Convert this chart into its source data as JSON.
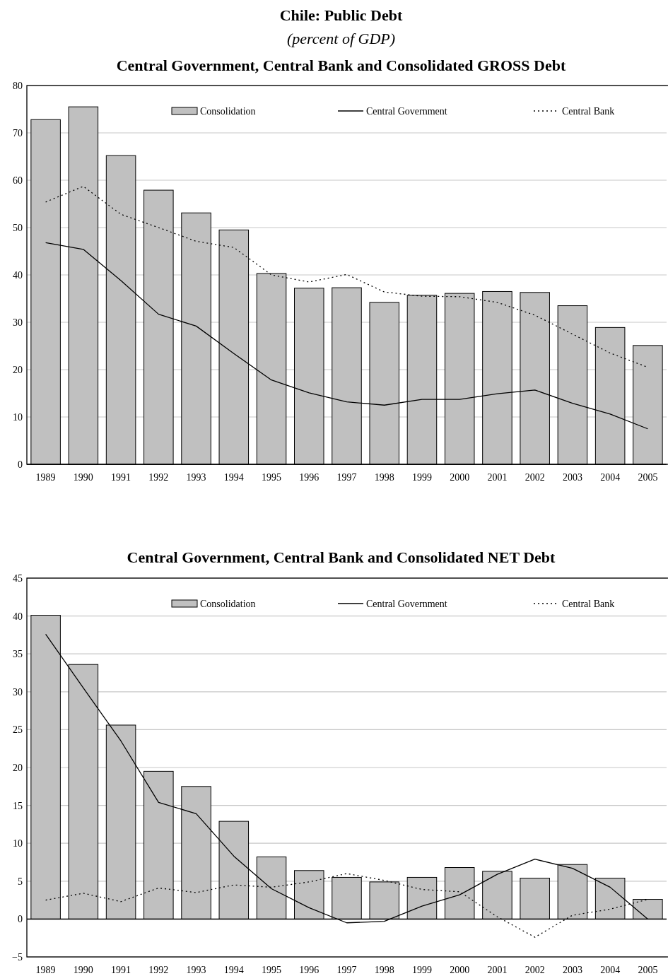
{
  "chart_data": [
    {
      "type": "bar",
      "title": "Chile: Public Debt",
      "subtitle": "(percent of GDP)",
      "annotations": [
        "Central Government, Central Bank and Consolidated GROSS Debt"
      ],
      "categories": [
        "1989",
        "1990",
        "1991",
        "1992",
        "1993",
        "1994",
        "1995",
        "1996",
        "1997",
        "1998",
        "1999",
        "2000",
        "2001",
        "2002",
        "2003",
        "2004",
        "2005"
      ],
      "series": [
        {
          "name": "Consolidation",
          "color": "#c0c0c0",
          "values": [
            72.8,
            75.5,
            65.2,
            57.9,
            53.1,
            49.5,
            40.3,
            37.2,
            37.3,
            34.2,
            35.7,
            36.1,
            36.5,
            36.3,
            33.5,
            28.9,
            25.1
          ]
        },
        {
          "name": "Central Government",
          "type": "line",
          "color": "#000000",
          "line_style": "solid",
          "values": [
            46.8,
            45.4,
            38.8,
            31.7,
            29.2,
            23.4,
            17.8,
            15.1,
            13.2,
            12.5,
            13.7,
            13.7,
            14.9,
            15.7,
            12.9,
            10.6,
            7.5
          ]
        },
        {
          "name": "Central Bank",
          "type": "line",
          "color": "#000000",
          "line_style": "dotted",
          "values": [
            55.4,
            58.7,
            52.8,
            50.0,
            47.1,
            45.8,
            40.0,
            38.5,
            40.1,
            36.4,
            35.5,
            35.4,
            34.2,
            31.5,
            27.5,
            23.5,
            20.5
          ]
        }
      ],
      "ylim": [
        0,
        80
      ],
      "yticks": [
        0,
        10,
        20,
        30,
        40,
        50,
        60,
        70,
        80
      ],
      "grid": "y",
      "legend": "top"
    },
    {
      "type": "bar",
      "title": "Central Government, Central Bank and Consolidated NET Debt",
      "categories": [
        "1989",
        "1990",
        "1991",
        "1992",
        "1993",
        "1994",
        "1995",
        "1996",
        "1997",
        "1998",
        "1999",
        "2000",
        "2001",
        "2002",
        "2003",
        "2004",
        "2005"
      ],
      "series": [
        {
          "name": "Consolidation",
          "color": "#c0c0c0",
          "values": [
            40.1,
            33.6,
            25.6,
            19.5,
            17.5,
            12.9,
            8.2,
            6.4,
            5.5,
            4.9,
            5.5,
            6.8,
            6.3,
            5.4,
            7.2,
            5.4,
            2.6
          ]
        },
        {
          "name": "Central Government",
          "type": "line",
          "color": "#000000",
          "line_style": "solid",
          "values": [
            37.6,
            30.5,
            23.5,
            15.4,
            13.9,
            8.3,
            4.0,
            1.5,
            -0.5,
            -0.3,
            1.7,
            3.2,
            5.9,
            7.9,
            6.7,
            4.2,
            0.0
          ]
        },
        {
          "name": "Central Bank",
          "type": "line",
          "color": "#000000",
          "line_style": "dotted",
          "values": [
            2.5,
            3.4,
            2.3,
            4.1,
            3.5,
            4.5,
            4.2,
            4.9,
            6.0,
            5.1,
            3.9,
            3.6,
            0.3,
            -2.4,
            0.5,
            1.3,
            2.6
          ]
        }
      ],
      "ylim": [
        -5,
        45
      ],
      "yticks": [
        -5,
        0,
        5,
        10,
        15,
        20,
        25,
        30,
        35,
        40,
        45
      ],
      "grid": "y",
      "legend": "top"
    }
  ]
}
